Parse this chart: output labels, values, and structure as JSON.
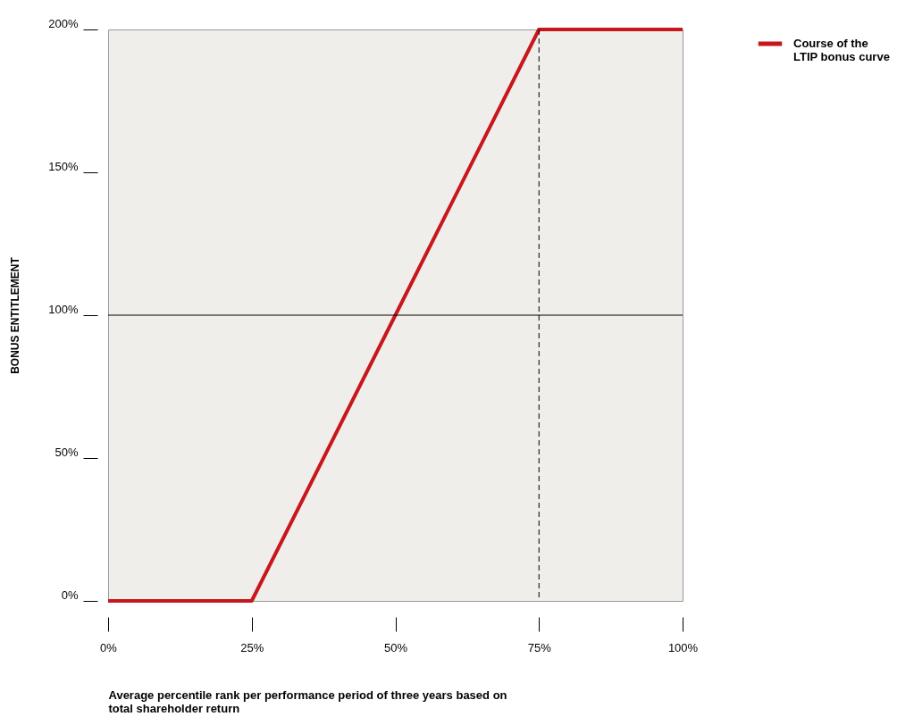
{
  "chart_data": {
    "type": "line",
    "xlabel": "Average percentile rank per performance period of three years based on total shareholder return",
    "ylabel": "BONUS ENTITLEMENT",
    "x": [
      0,
      25,
      50,
      75,
      100
    ],
    "series": [
      {
        "name": "Course of the LTIP bonus curve",
        "color": "#c8161d",
        "values": [
          0,
          0,
          100,
          200,
          200
        ]
      }
    ],
    "xlim": [
      0,
      100
    ],
    "ylim": [
      0,
      200
    ],
    "xticks": [
      {
        "value": 0,
        "label": "0%"
      },
      {
        "value": 25,
        "label": "25%"
      },
      {
        "value": 50,
        "label": "50%"
      },
      {
        "value": 75,
        "label": "75%"
      },
      {
        "value": 100,
        "label": "100%"
      }
    ],
    "yticks": [
      {
        "value": 0,
        "label": "0%"
      },
      {
        "value": 50,
        "label": "50%"
      },
      {
        "value": 100,
        "label": "100%"
      },
      {
        "value": 150,
        "label": "150%"
      },
      {
        "value": 200,
        "label": "200%"
      }
    ],
    "ref_lines": [
      {
        "axis": "y",
        "value": 100,
        "label": null,
        "color": "#000000",
        "line_style": "solid"
      },
      {
        "axis": "x",
        "value": 75,
        "label": null,
        "color": "#000000",
        "line_style": "dashed"
      }
    ],
    "grid": false,
    "legend": "top right",
    "marker": "none",
    "line_style": "solid"
  }
}
